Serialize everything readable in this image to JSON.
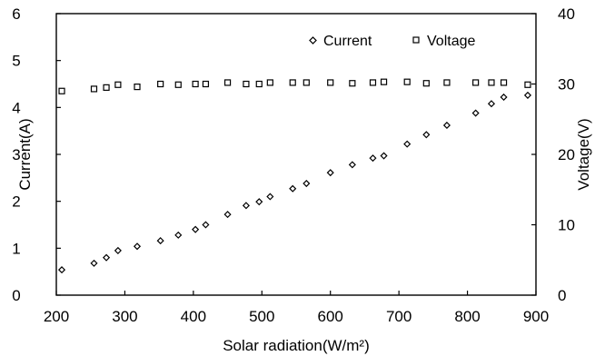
{
  "chart_data": {
    "type": "scatter",
    "xlabel": "Solar radiation(W/m²)",
    "ylabel_left": "Current(A)",
    "ylabel_right": "Voltage(V)",
    "xlim": [
      200,
      900
    ],
    "ylim_left": [
      0,
      6
    ],
    "ylim_right": [
      0,
      40
    ],
    "x_ticks": [
      "200",
      "300",
      "400",
      "500",
      "600",
      "700",
      "800",
      "900"
    ],
    "y_left_ticks": [
      "0",
      "1",
      "2",
      "3",
      "4",
      "5",
      "6"
    ],
    "y_right_ticks": [
      "0",
      "10",
      "20",
      "30",
      "40"
    ],
    "grid": false,
    "legend_position": "top-right",
    "series": [
      {
        "name": "Current",
        "axis": "left",
        "marker": "diamond",
        "x": [
          208,
          255,
          273,
          290,
          318,
          352,
          378,
          403,
          418,
          450,
          477,
          496,
          512,
          545,
          565,
          600,
          632,
          662,
          678,
          712,
          740,
          770,
          812,
          835,
          853,
          888
        ],
        "y": [
          0.54,
          0.68,
          0.8,
          0.95,
          1.04,
          1.16,
          1.28,
          1.4,
          1.5,
          1.72,
          1.91,
          1.99,
          2.1,
          2.27,
          2.38,
          2.61,
          2.78,
          2.92,
          2.97,
          3.22,
          3.42,
          3.62,
          3.88,
          4.08,
          4.22,
          4.26
        ]
      },
      {
        "name": "Voltage",
        "axis": "right",
        "marker": "square",
        "x": [
          208,
          255,
          273,
          290,
          318,
          352,
          378,
          403,
          418,
          450,
          477,
          496,
          512,
          545,
          565,
          600,
          632,
          662,
          678,
          712,
          740,
          770,
          812,
          835,
          853,
          888
        ],
        "y": [
          29.0,
          29.3,
          29.5,
          29.9,
          29.6,
          30.0,
          29.9,
          30.0,
          30.0,
          30.2,
          30.0,
          30.0,
          30.2,
          30.2,
          30.2,
          30.2,
          30.1,
          30.2,
          30.3,
          30.3,
          30.1,
          30.2,
          30.2,
          30.2,
          30.2,
          29.9
        ]
      }
    ]
  }
}
